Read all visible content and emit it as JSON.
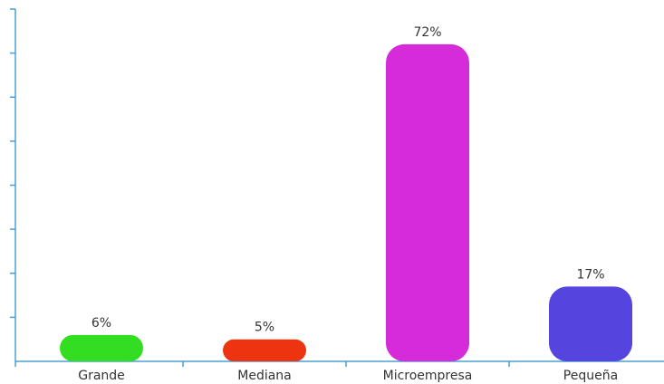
{
  "chart_data": {
    "type": "bar",
    "categories": [
      "Grande",
      "Mediana",
      "Microempresa",
      "Pequeña"
    ],
    "values": [
      6,
      5,
      72,
      17
    ],
    "value_labels": [
      "6%",
      "5%",
      "72%",
      "17%"
    ],
    "colors": [
      "#33dd22",
      "#ee3311",
      "#d62bd9",
      "#5544dd"
    ],
    "axis_color": "#4a9fd6",
    "ylim": [
      0,
      80
    ],
    "grid": false,
    "legend": "none"
  }
}
